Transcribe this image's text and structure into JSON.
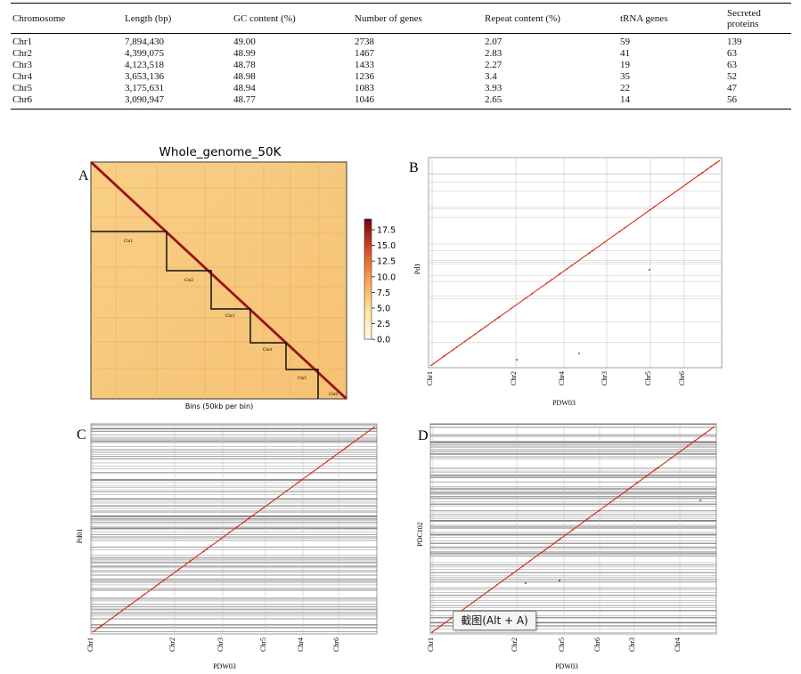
{
  "table": {
    "headers": [
      "Chromosome",
      "Length (bp)",
      "GC content (%)",
      "Number of genes",
      "Repeat content (%)",
      "tRNA genes",
      "Secreted proteins"
    ],
    "rows": [
      [
        "Chr1",
        "7,894,430",
        "49.00",
        "2738",
        "2.07",
        "59",
        "139"
      ],
      [
        "Chr2",
        "4,399,075",
        "48.99",
        "1467",
        "2.83",
        "41",
        "63"
      ],
      [
        "Chr3",
        "4,123,518",
        "48.78",
        "1433",
        "2.27",
        "19",
        "63"
      ],
      [
        "Chr4",
        "3,653,136",
        "48.98",
        "1236",
        "3.4",
        "35",
        "52"
      ],
      [
        "Chr5",
        "3,175,631",
        "48.94",
        "1083",
        "3.93",
        "22",
        "47"
      ],
      [
        "Chr6",
        "3,090,947",
        "48.77",
        "1046",
        "2.65",
        "14",
        "56"
      ]
    ]
  },
  "panel_a": {
    "letter": "A",
    "title": "Whole_genome_50K",
    "xlabel": "Bins (50kb per bin)",
    "colorbar_ticks": [
      "17.5",
      "15.0",
      "12.5",
      "10.0",
      "7.5",
      "5.0",
      "2.5",
      "0.0"
    ],
    "chrom_labels": [
      "Chr1",
      "Chr2",
      "Chr3",
      "Chr4",
      "Chr5",
      "Chr6"
    ],
    "colors": {
      "low": "#fff6c8",
      "mid": "#f6a45a",
      "high": "#7a0a12",
      "diagonal": "#b3261e"
    }
  },
  "panel_b": {
    "letter": "B",
    "xlabel": "PDW03",
    "ylabel": "Pd1",
    "x_ticks": [
      "Chr1",
      "Chr2",
      "Chr4",
      "Chr3",
      "Chr5",
      "Chr6"
    ]
  },
  "panel_c": {
    "letter": "C",
    "xlabel": "PDW03",
    "ylabel": "Pd01",
    "x_ticks": [
      "Chr1",
      "Chr2",
      "Chr3",
      "Chr5",
      "Chr4",
      "Chr6"
    ]
  },
  "panel_d": {
    "letter": "D",
    "xlabel": "PDW03",
    "ylabel": "PDC102",
    "x_ticks": [
      "Chr1",
      "Chr2",
      "Chr5",
      "Chr6",
      "Chr3",
      "Chr4"
    ]
  },
  "dotplot_color": "#d42b1e",
  "tooltip": {
    "label": "截图(Alt + A)"
  }
}
